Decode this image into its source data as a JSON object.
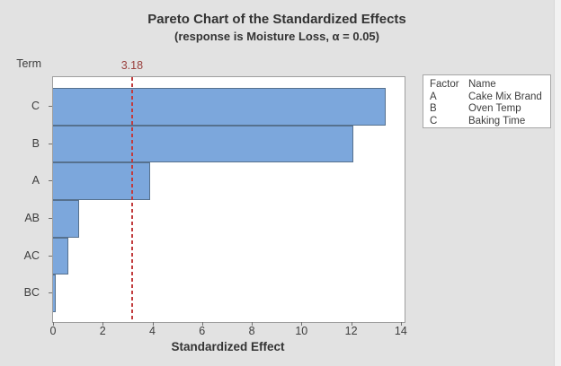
{
  "chart_data": {
    "type": "bar",
    "orientation": "horizontal",
    "title": "Pareto Chart of the Standardized Effects",
    "subtitle": "(response is Moisture Loss, α = 0.05)",
    "xlabel": "Standardized Effect",
    "ylabel": "Term",
    "categories": [
      "C",
      "B",
      "A",
      "AB",
      "AC",
      "BC"
    ],
    "values": [
      13.4,
      12.1,
      3.9,
      1.05,
      0.6,
      0.1
    ],
    "xlim": [
      0,
      14.15
    ],
    "x_ticks": [
      0,
      2,
      4,
      6,
      8,
      10,
      12,
      14
    ],
    "reference_line": {
      "value": 3.18,
      "label": "3.18"
    },
    "legend_position": "right",
    "grid": false,
    "bar_color": "#7ca7dc",
    "bar_border_color": "#56718e",
    "reference_line_color": "#c23b3d",
    "reference_label_color": "#9a403e",
    "background_color": "#e2e2e2",
    "plot_background_color": "#ffffff"
  },
  "legend": {
    "headers": [
      "Factor",
      "Name"
    ],
    "rows": [
      [
        "A",
        "Cake Mix Brand"
      ],
      [
        "B",
        "Oven Temp"
      ],
      [
        "C",
        "Baking Time"
      ]
    ]
  }
}
